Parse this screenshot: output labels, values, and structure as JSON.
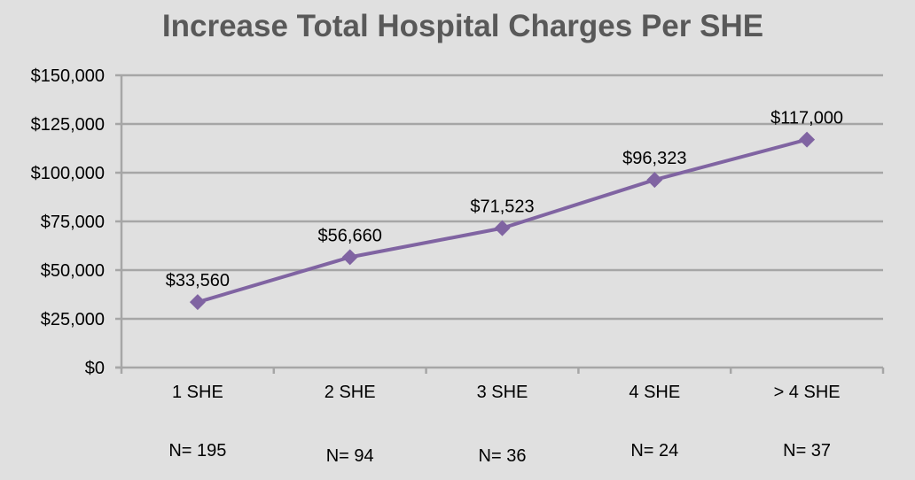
{
  "chart_data": {
    "type": "line",
    "title": "Increase Total Hospital Charges Per SHE",
    "xlabel": "",
    "ylabel": "",
    "categories": [
      "1 SHE",
      "2 SHE",
      "3 SHE",
      "4 SHE",
      "> 4 SHE"
    ],
    "sample_sizes": [
      "N= 195",
      "N= 94",
      "N= 36",
      "N= 24",
      "N= 37"
    ],
    "series": [
      {
        "name": "Total Hospital Charges",
        "values": [
          33560,
          56660,
          71523,
          96323,
          117000
        ],
        "labels": [
          "$33,560",
          "$56,660",
          "$71,523",
          "$96,323",
          "$117,000"
        ],
        "color": "#8064a2"
      }
    ],
    "ylim": [
      0,
      150000
    ],
    "yticks": [
      0,
      25000,
      50000,
      75000,
      100000,
      125000,
      150000
    ],
    "ytick_labels": [
      "$0",
      "$25,000",
      "$50,000",
      "$75,000",
      "$100,000",
      "$125,000",
      "$150,000"
    ],
    "grid": true,
    "legend": "none",
    "marker": "diamond",
    "colors": {
      "background": "#e0e0e0",
      "grid": "#a6a6a6",
      "title": "#595959",
      "line": "#8064a2"
    }
  }
}
